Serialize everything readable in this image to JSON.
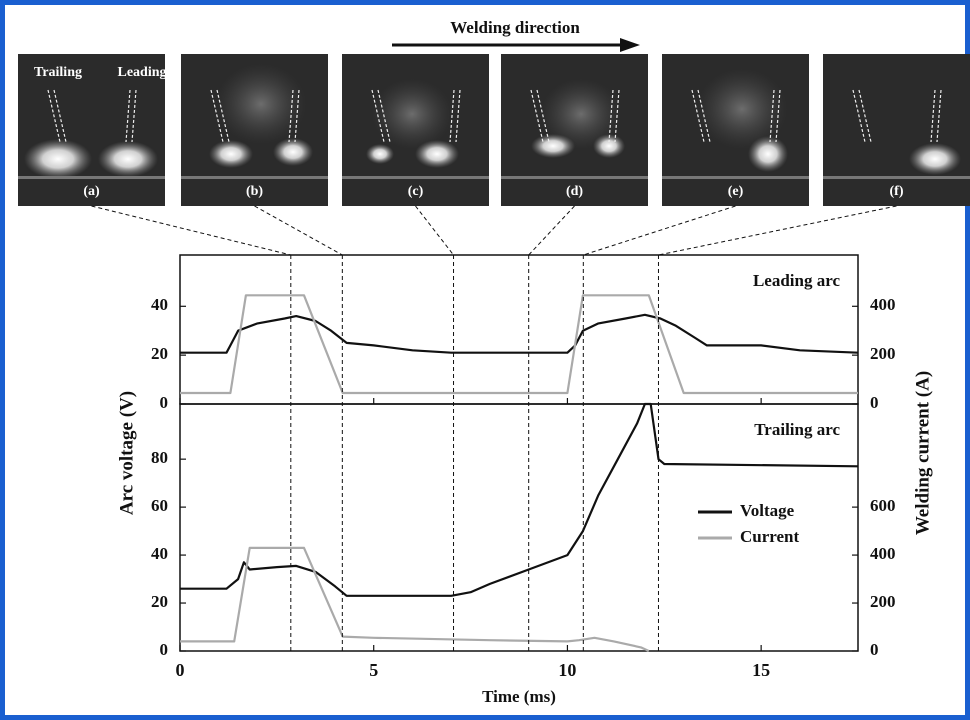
{
  "chart_data": {
    "type": "line",
    "direction_label": "Welding direction",
    "photo_labels": [
      "(a)",
      "(b)",
      "(c)",
      "(d)",
      "(e)",
      "(f)"
    ],
    "photo_annotations": [
      "Trailing",
      "Leading"
    ],
    "x_label": "Time (ms)",
    "y_label": "Arc voltage (V)",
    "y2_label": "Welding current (A)",
    "xlim": [
      0,
      17.5
    ],
    "xticks": [
      0,
      5,
      10,
      15
    ],
    "marker_times": [
      2.86,
      4.19,
      7.06,
      9.0,
      10.41,
      12.35
    ],
    "panels": [
      {
        "annotation": "Leading arc",
        "ylim": [
          0,
          61
        ],
        "yticks": [
          0,
          20,
          40
        ],
        "y2lim": [
          0,
          610
        ],
        "y2ticks": [
          0,
          200,
          400
        ],
        "series": [
          {
            "color": "#111111",
            "axis": "y",
            "x": [
              0,
              1.2,
              1.3,
              1.5,
              2,
              2.7,
              3,
              3.5,
              3.9,
              4.3,
              5,
              6,
              7,
              8,
              9.5,
              10,
              10.2,
              10.4,
              10.8,
              11.5,
              12,
              12.4,
              12.8,
              13.3,
              13.6,
              15,
              16,
              17.5
            ],
            "values": [
              21,
              21,
              24,
              30,
              33,
              35,
              36,
              34,
              30,
              25,
              24,
              22,
              21,
              21,
              21,
              21,
              24,
              30,
              33,
              35,
              36.5,
              35,
              32,
              27,
              24,
              24,
              22,
              21
            ]
          },
          {
            "color": "#aaaaaa",
            "axis": "y2",
            "x": [
              0,
              1.3,
              1.7,
              3.2,
              4.2,
              10,
              10.4,
              12.1,
              13,
              17.5
            ],
            "values": [
              45,
              45,
              445,
              445,
              45,
              45,
              445,
              445,
              45,
              45
            ]
          }
        ]
      },
      {
        "annotation": "Trailing arc",
        "ylim": [
          0,
          103
        ],
        "yticks": [
          0,
          20,
          40,
          60,
          80
        ],
        "y2lim": [
          0,
          1030
        ],
        "y2ticks": [
          0,
          200,
          400,
          600
        ],
        "series": [
          {
            "name": "Voltage",
            "color": "#111111",
            "axis": "y",
            "x": [
              0,
              1.2,
              1.5,
              1.65,
              1.8,
              2.5,
              3,
              3.5,
              4,
              4.3,
              5,
              7,
              7.5,
              8,
              9,
              10,
              10.4,
              10.8,
              11.3,
              11.8,
              12,
              12.15,
              12.35,
              12.5,
              17.5
            ],
            "values": [
              26,
              26,
              30,
              37,
              34,
              35,
              35.5,
              33,
              27,
              23,
              23,
              23,
              24.5,
              28,
              34,
              40,
              50,
              65,
              80,
              95,
              103,
              103,
              80,
              78,
              77
            ]
          },
          {
            "name": "Current",
            "color": "#aaaaaa",
            "axis": "y2",
            "x": [
              0,
              1.4,
              1.8,
              3.2,
              4.2,
              5,
              8,
              10,
              10.3,
              10.7,
              11.2,
              11.9,
              12.1
            ],
            "values": [
              40,
              40,
              430,
              430,
              60,
              55,
              45,
              40,
              45,
              55,
              40,
              15,
              0
            ]
          }
        ]
      }
    ]
  }
}
